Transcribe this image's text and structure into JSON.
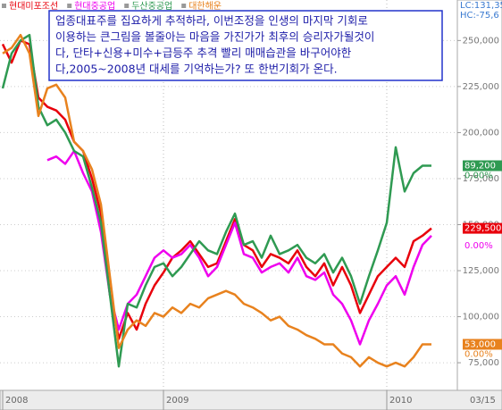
{
  "chart_data": {
    "type": "line",
    "corner_labels": [
      "LC:131,35",
      "HC:-75,6"
    ],
    "annotation": [
      "업종대표주를 집요하게 추적하라, 이번조정을 인생의 마지막 기회로",
      "이용하는 큰그림을 볼줄아는 마음을 가진가가 최후의 승리자가될것이",
      "다, 단타+신용+미수+급등주 추격 빨리 매매습관을 바구어야한",
      "다,2005~2008년 대세를 기억하는가? 또 한번기회가 온다."
    ],
    "categories": [
      "2008",
      null,
      null,
      null,
      null,
      null,
      null,
      null,
      null,
      null,
      null,
      null,
      null,
      null,
      null,
      null,
      null,
      null,
      "2009",
      null,
      null,
      null,
      null,
      null,
      null,
      null,
      null,
      null,
      null,
      null,
      null,
      null,
      null,
      null,
      null,
      null,
      null,
      null,
      null,
      null,
      null,
      null,
      null,
      "2010",
      null,
      null,
      null,
      null,
      null
    ],
    "date_label": "03/15",
    "ylim": [
      60000,
      272000
    ],
    "yticks": [
      {
        "value": 75000,
        "label": "75,000"
      },
      {
        "value": 100000,
        "label": "100,000"
      },
      {
        "value": 125000,
        "label": "125,000"
      },
      {
        "value": 150000,
        "label": "150,000"
      },
      {
        "value": 175000,
        "label": "175,000"
      },
      {
        "value": 200000,
        "label": "200,000"
      },
      {
        "value": 225000,
        "label": "225,000"
      },
      {
        "value": 250000,
        "label": "250,000"
      }
    ],
    "grid": true,
    "series": [
      {
        "name": "현대미포조선",
        "color": "#e8000b",
        "last_label": "229,500",
        "values": [
          248000,
          238000,
          250000,
          248000,
          219000,
          214000,
          212000,
          207000,
          195000,
          190000,
          175000,
          156000,
          112000,
          88000,
          102000,
          93000,
          107000,
          117000,
          124000,
          132000,
          136000,
          141000,
          134000,
          127000,
          129000,
          141000,
          153000,
          139000,
          136000,
          127000,
          134000,
          132000,
          129000,
          136000,
          127000,
          122000,
          129000,
          117000,
          127000,
          117000,
          102000,
          112000,
          122000,
          127000,
          132000,
          127000,
          141000,
          144000,
          148000
        ]
      },
      {
        "name": "현대중공업",
        "color": "#ee00ee",
        "change_label": "0.00%",
        "values": [
          null,
          null,
          null,
          null,
          null,
          185000,
          187000,
          183000,
          190000,
          178000,
          168000,
          146000,
          112000,
          93000,
          107000,
          112000,
          122000,
          132000,
          136000,
          132000,
          134000,
          139000,
          132000,
          122000,
          127000,
          139000,
          151000,
          134000,
          132000,
          124000,
          127000,
          129000,
          124000,
          132000,
          122000,
          120000,
          124000,
          112000,
          107000,
          98000,
          85000,
          98000,
          107000,
          117000,
          122000,
          112000,
          127000,
          139000,
          144000
        ]
      },
      {
        "name": "두산중공업",
        "color": "#2f9a52",
        "last_label": "89,200",
        "change_label": "0.00%",
        "values": [
          224000,
          243000,
          250000,
          253000,
          214000,
          204000,
          207000,
          200000,
          190000,
          187000,
          170000,
          151000,
          112000,
          73000,
          107000,
          105000,
          117000,
          127000,
          129000,
          122000,
          127000,
          134000,
          141000,
          136000,
          134000,
          146000,
          156000,
          139000,
          141000,
          132000,
          144000,
          134000,
          136000,
          139000,
          132000,
          129000,
          134000,
          124000,
          132000,
          122000,
          107000,
          122000,
          136000,
          151000,
          192000,
          168000,
          178000,
          182000,
          182000
        ]
      },
      {
        "name": "대한해운",
        "color": "#e8821e",
        "last_label": "53,000",
        "change_label": "0.00%",
        "values": [
          243000,
          246000,
          253000,
          243000,
          209000,
          224000,
          226000,
          219000,
          195000,
          190000,
          180000,
          161000,
          122000,
          83000,
          93000,
          98000,
          95000,
          102000,
          100000,
          105000,
          102000,
          107000,
          105000,
          110000,
          112000,
          114000,
          112000,
          107000,
          105000,
          102000,
          98000,
          100000,
          95000,
          93000,
          90000,
          88000,
          85000,
          85000,
          80000,
          78000,
          73000,
          78000,
          75000,
          73000,
          75000,
          73000,
          78000,
          85000,
          85000
        ]
      }
    ]
  }
}
